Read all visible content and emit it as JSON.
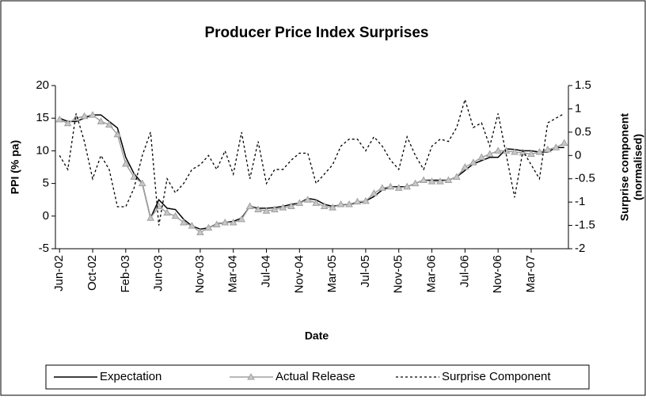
{
  "chart_data": {
    "type": "line",
    "title": "Producer Price Index Surprises",
    "xlabel": "Date",
    "ylabel": "PPI (% pa)",
    "y2label": [
      "Surprise component",
      "(normalised)"
    ],
    "categories": [
      "Jun-02",
      null,
      null,
      null,
      "Oct-02",
      null,
      null,
      null,
      "Feb-03",
      null,
      null,
      null,
      "Jun-03",
      null,
      null,
      null,
      null,
      "Nov-03",
      null,
      null,
      null,
      "Mar-04",
      null,
      null,
      null,
      "Jul-04",
      null,
      null,
      null,
      "Nov-04",
      null,
      null,
      null,
      "Mar-05",
      null,
      null,
      null,
      "Jul-05",
      null,
      null,
      null,
      "Nov-05",
      null,
      null,
      null,
      "Mar-06",
      null,
      null,
      null,
      "Jul-06",
      null,
      null,
      null,
      "Nov-06",
      null,
      null,
      null,
      "Mar-07",
      null,
      null,
      null,
      null
    ],
    "series": [
      {
        "name": "Expectation",
        "color": "#000000",
        "style": "solid",
        "values": [
          15,
          14.5,
          14.5,
          15,
          15.5,
          15.5,
          14.5,
          13.5,
          9,
          6.5,
          5,
          -0.3,
          2.5,
          1.2,
          1,
          -0.5,
          -1.5,
          -2,
          -1.8,
          -1.2,
          -1,
          -0.8,
          -0.3,
          1.5,
          1.2,
          1.2,
          1.3,
          1.5,
          1.8,
          2,
          2.7,
          2.5,
          1.8,
          1.5,
          1.7,
          1.8,
          2,
          2.3,
          3,
          4,
          4.5,
          4.5,
          4.5,
          5,
          5.5,
          5.5,
          5.5,
          5.5,
          6,
          7,
          8,
          8.5,
          9,
          9,
          10.3,
          10.2,
          10,
          10,
          9.8,
          9.8,
          10.5,
          10.5
        ]
      },
      {
        "name": "Actual Release",
        "color": "#a0a0a0",
        "style": "triangle",
        "values": [
          14.8,
          14.2,
          15,
          15.3,
          15.5,
          14.5,
          14,
          12.5,
          8,
          6,
          5,
          -0.3,
          1.5,
          0.5,
          0,
          -1,
          -1.5,
          -2.5,
          -1.8,
          -1.3,
          -1,
          -1,
          -0.5,
          1.5,
          1,
          0.8,
          1,
          1.3,
          1.5,
          2,
          2.5,
          2,
          1.5,
          1.3,
          1.8,
          1.8,
          2.2,
          2.3,
          3.5,
          4.3,
          4.5,
          4.3,
          4.5,
          5,
          5.5,
          5.3,
          5.3,
          5.5,
          6,
          7.5,
          8.2,
          9,
          9.5,
          10,
          10,
          9.8,
          9.7,
          9.5,
          9.8,
          10.2,
          10.5,
          11.2
        ]
      },
      {
        "name": "Surprise Component",
        "color": "#000000",
        "style": "dashed",
        "axis": "y2",
        "values": [
          0,
          -0.3,
          0.9,
          0.3,
          -0.5,
          0,
          -0.3,
          -1.1,
          -1.1,
          -0.7,
          0,
          0.5,
          -1.5,
          -0.5,
          -0.8,
          -0.6,
          -0.3,
          -0.2,
          0,
          -0.3,
          0.1,
          -0.4,
          0.5,
          -0.5,
          0.3,
          -0.6,
          -0.3,
          -0.3,
          -0.1,
          0.05,
          0.05,
          -0.6,
          -0.4,
          -0.2,
          0.2,
          0.35,
          0.35,
          0.1,
          0.4,
          0.2,
          -0.1,
          -0.3,
          0.4,
          0,
          -0.3,
          0.2,
          0.35,
          0.3,
          0.6,
          1.2,
          0.6,
          0.7,
          0.2,
          0.9,
          0,
          -0.9,
          0.1,
          -0.2,
          -0.5,
          0.7,
          0.8,
          0.9
        ]
      }
    ],
    "ylim": [
      -5,
      20
    ],
    "yticks": [
      -5,
      0,
      5,
      10,
      15,
      20
    ],
    "y2lim": [
      -2,
      1.5
    ],
    "y2ticks": [
      -2,
      -1.5,
      -1,
      -0.5,
      0,
      0.5,
      1,
      1.5
    ],
    "legend": "bottom"
  }
}
